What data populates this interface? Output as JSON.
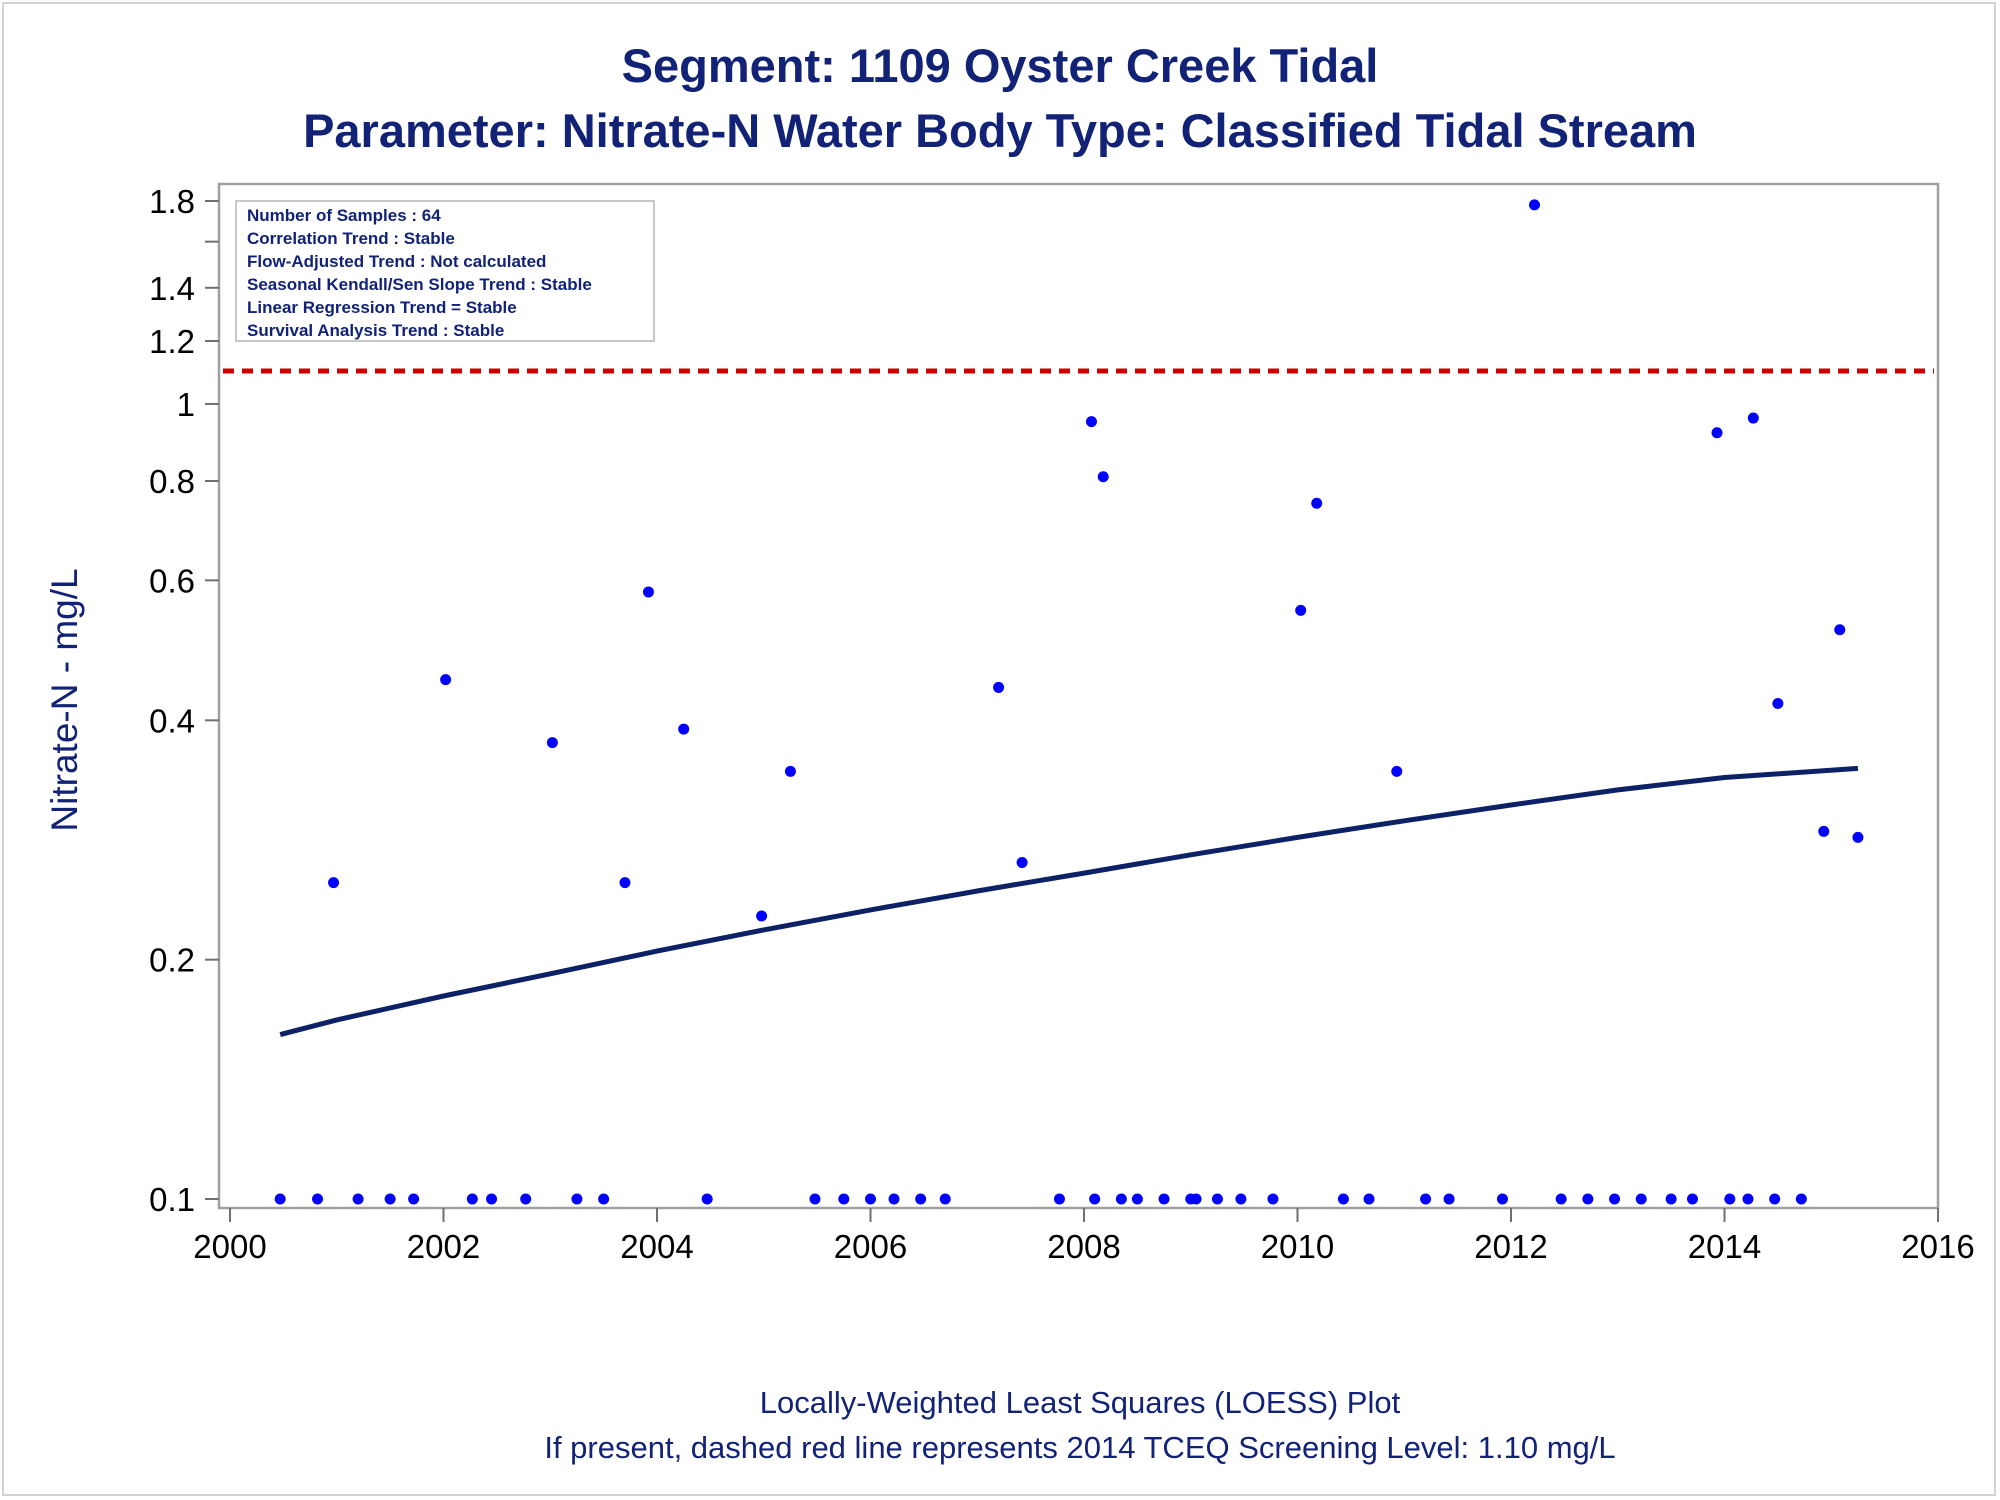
{
  "chart_data": {
    "type": "scatter",
    "title": "Segment: 1109  Oyster Creek Tidal",
    "subtitle": "Parameter: Nitrate-N   Water Body Type: Classified Tidal Stream",
    "xlabel": "",
    "ylabel": "Nitrate-N - mg/L",
    "xlim": [
      2000,
      2016
    ],
    "ylim": [
      0.1,
      1.8
    ],
    "y_scale": "log",
    "x_ticks": [
      2000,
      2002,
      2004,
      2006,
      2008,
      2010,
      2012,
      2014,
      2016
    ],
    "y_ticks": [
      0.1,
      0.2,
      0.4,
      0.6,
      0.8,
      1,
      1.2,
      1.4,
      1.8
    ],
    "grid": false,
    "stats_box": [
      "Number of Samples : 64",
      "Correlation Trend : Stable",
      "Flow-Adjusted Trend : Not calculated",
      "Seasonal Kendall/Sen Slope Trend : Stable",
      "Linear Regression Trend = Stable",
      "Survival Analysis Trend : Stable"
    ],
    "footnotes": [
      "Locally-Weighted Least Squares (LOESS) Plot",
      "If present, dashed red line represents 2014 TCEQ Screening Level: 1.10 mg/L"
    ],
    "screening_level": 1.1,
    "colors": {
      "points": "#0000ff",
      "loess": "#0d2266",
      "screening": "#cc0000",
      "text": "#112277"
    },
    "points": [
      {
        "x": 2000.47,
        "y": 0.1
      },
      {
        "x": 2000.82,
        "y": 0.1
      },
      {
        "x": 2000.97,
        "y": 0.25
      },
      {
        "x": 2001.2,
        "y": 0.1
      },
      {
        "x": 2001.5,
        "y": 0.1
      },
      {
        "x": 2001.72,
        "y": 0.1
      },
      {
        "x": 2002.02,
        "y": 0.45
      },
      {
        "x": 2002.27,
        "y": 0.1
      },
      {
        "x": 2002.45,
        "y": 0.1
      },
      {
        "x": 2002.77,
        "y": 0.1
      },
      {
        "x": 2003.02,
        "y": 0.375
      },
      {
        "x": 2003.25,
        "y": 0.1
      },
      {
        "x": 2003.5,
        "y": 0.1
      },
      {
        "x": 2003.7,
        "y": 0.25
      },
      {
        "x": 2003.92,
        "y": 0.58
      },
      {
        "x": 2004.25,
        "y": 0.39
      },
      {
        "x": 2004.47,
        "y": 0.1
      },
      {
        "x": 2004.98,
        "y": 0.227
      },
      {
        "x": 2005.25,
        "y": 0.345
      },
      {
        "x": 2005.48,
        "y": 0.1
      },
      {
        "x": 2005.75,
        "y": 0.1
      },
      {
        "x": 2006.0,
        "y": 0.1
      },
      {
        "x": 2006.22,
        "y": 0.1
      },
      {
        "x": 2006.47,
        "y": 0.1
      },
      {
        "x": 2006.7,
        "y": 0.1
      },
      {
        "x": 2007.2,
        "y": 0.44
      },
      {
        "x": 2007.42,
        "y": 0.265
      },
      {
        "x": 2007.77,
        "y": 0.1
      },
      {
        "x": 2008.07,
        "y": 0.95
      },
      {
        "x": 2008.1,
        "y": 0.1
      },
      {
        "x": 2008.18,
        "y": 0.81
      },
      {
        "x": 2008.35,
        "y": 0.1
      },
      {
        "x": 2008.5,
        "y": 0.1
      },
      {
        "x": 2008.75,
        "y": 0.1
      },
      {
        "x": 2009.0,
        "y": 0.1
      },
      {
        "x": 2009.05,
        "y": 0.1
      },
      {
        "x": 2009.25,
        "y": 0.1
      },
      {
        "x": 2009.47,
        "y": 0.1
      },
      {
        "x": 2009.77,
        "y": 0.1
      },
      {
        "x": 2010.03,
        "y": 0.55
      },
      {
        "x": 2010.18,
        "y": 0.75
      },
      {
        "x": 2010.43,
        "y": 0.1
      },
      {
        "x": 2010.67,
        "y": 0.1
      },
      {
        "x": 2010.93,
        "y": 0.345
      },
      {
        "x": 2011.2,
        "y": 0.1
      },
      {
        "x": 2011.42,
        "y": 0.1
      },
      {
        "x": 2011.92,
        "y": 0.1
      },
      {
        "x": 2012.22,
        "y": 1.78
      },
      {
        "x": 2012.47,
        "y": 0.1
      },
      {
        "x": 2012.72,
        "y": 0.1
      },
      {
        "x": 2012.97,
        "y": 0.1
      },
      {
        "x": 2013.22,
        "y": 0.1
      },
      {
        "x": 2013.5,
        "y": 0.1
      },
      {
        "x": 2013.7,
        "y": 0.1
      },
      {
        "x": 2013.93,
        "y": 0.92
      },
      {
        "x": 2014.05,
        "y": 0.1
      },
      {
        "x": 2014.22,
        "y": 0.1
      },
      {
        "x": 2014.27,
        "y": 0.96
      },
      {
        "x": 2014.47,
        "y": 0.1
      },
      {
        "x": 2014.5,
        "y": 0.42
      },
      {
        "x": 2014.72,
        "y": 0.1
      },
      {
        "x": 2014.93,
        "y": 0.29
      },
      {
        "x": 2015.08,
        "y": 0.52
      },
      {
        "x": 2015.25,
        "y": 0.285
      }
    ],
    "loess": [
      {
        "x": 2000.47,
        "y": 0.161
      },
      {
        "x": 2001.0,
        "y": 0.168
      },
      {
        "x": 2002.0,
        "y": 0.18
      },
      {
        "x": 2003.0,
        "y": 0.192
      },
      {
        "x": 2004.0,
        "y": 0.205
      },
      {
        "x": 2005.0,
        "y": 0.218
      },
      {
        "x": 2006.0,
        "y": 0.231
      },
      {
        "x": 2007.0,
        "y": 0.244
      },
      {
        "x": 2008.0,
        "y": 0.257
      },
      {
        "x": 2009.0,
        "y": 0.271
      },
      {
        "x": 2010.0,
        "y": 0.285
      },
      {
        "x": 2011.0,
        "y": 0.299
      },
      {
        "x": 2012.0,
        "y": 0.313
      },
      {
        "x": 2013.0,
        "y": 0.327
      },
      {
        "x": 2014.0,
        "y": 0.339
      },
      {
        "x": 2015.25,
        "y": 0.348
      }
    ]
  }
}
